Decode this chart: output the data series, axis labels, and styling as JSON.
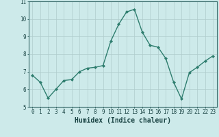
{
  "x": [
    0,
    1,
    2,
    3,
    4,
    5,
    6,
    7,
    8,
    9,
    10,
    11,
    12,
    13,
    14,
    15,
    16,
    17,
    18,
    19,
    20,
    21,
    22,
    23
  ],
  "y": [
    6.8,
    6.4,
    5.5,
    6.0,
    6.5,
    6.55,
    7.0,
    7.2,
    7.25,
    7.35,
    8.75,
    9.7,
    10.4,
    10.55,
    9.25,
    8.5,
    8.4,
    7.75,
    6.4,
    5.45,
    6.95,
    7.25,
    7.6,
    7.9
  ],
  "line_color": "#2e7d6e",
  "marker": "D",
  "marker_size": 2.0,
  "linewidth": 1.0,
  "xlabel": "Humidex (Indice chaleur)",
  "xlim": [
    -0.5,
    23.5
  ],
  "ylim": [
    5,
    11
  ],
  "yticks": [
    5,
    6,
    7,
    8,
    9,
    10,
    11
  ],
  "xticks": [
    0,
    1,
    2,
    3,
    4,
    5,
    6,
    7,
    8,
    9,
    10,
    11,
    12,
    13,
    14,
    15,
    16,
    17,
    18,
    19,
    20,
    21,
    22,
    23
  ],
  "background_color": "#cdeaea",
  "grid_color": "#b0cccc",
  "tick_label_fontsize": 5.5,
  "xlabel_fontsize": 7.0,
  "spine_color": "#336666",
  "label_color": "#1a4444"
}
